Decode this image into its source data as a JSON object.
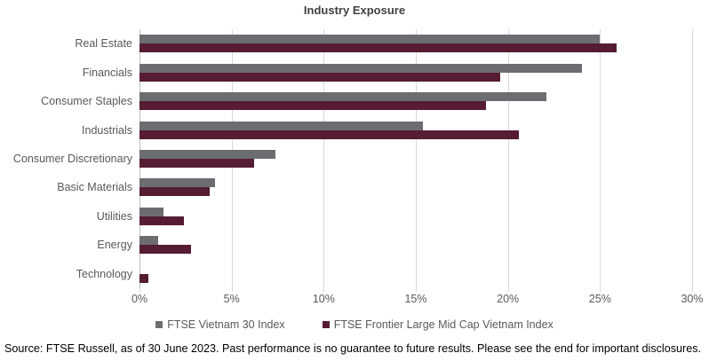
{
  "title": "Industry Exposure",
  "footer": "Source: FTSE Russell, as of 30 June 2023. Past performance is no guarantee to future results. Please see the end for important disclosures.",
  "colors": {
    "series1": "#6c6d70",
    "series2": "#551c33",
    "gridline": "#d9d9d9",
    "axis_line": "#bfbfbf",
    "tick_text": "#595959",
    "title_text": "#404040",
    "footer_text": "#000000"
  },
  "chart_data": {
    "type": "bar",
    "orientation": "horizontal",
    "title": "Industry Exposure",
    "xlabel": "",
    "ylabel": "",
    "grid": true,
    "legend_position": "bottom",
    "xlim": [
      0,
      30
    ],
    "x_tick_labels": [
      "0%",
      "5%",
      "10%",
      "15%",
      "20%",
      "25%",
      "30%"
    ],
    "x_tick_values": [
      0,
      5,
      10,
      15,
      20,
      25,
      30
    ],
    "categories": [
      "Real Estate",
      "Financials",
      "Consumer Staples",
      "Industrials",
      "Consumer Discretionary",
      "Basic Materials",
      "Utilities",
      "Energy",
      "Technology"
    ],
    "series": [
      {
        "name": "FTSE Vietnam 30 Index",
        "color": "#6c6d70",
        "values": [
          25.0,
          24.0,
          22.1,
          15.4,
          7.4,
          4.1,
          1.3,
          1.0,
          0.0
        ]
      },
      {
        "name": "FTSE Frontier Large Mid Cap Vietnam Index",
        "color": "#551c33",
        "values": [
          25.9,
          19.6,
          18.8,
          20.6,
          6.2,
          3.8,
          2.4,
          2.8,
          0.5
        ]
      }
    ]
  }
}
